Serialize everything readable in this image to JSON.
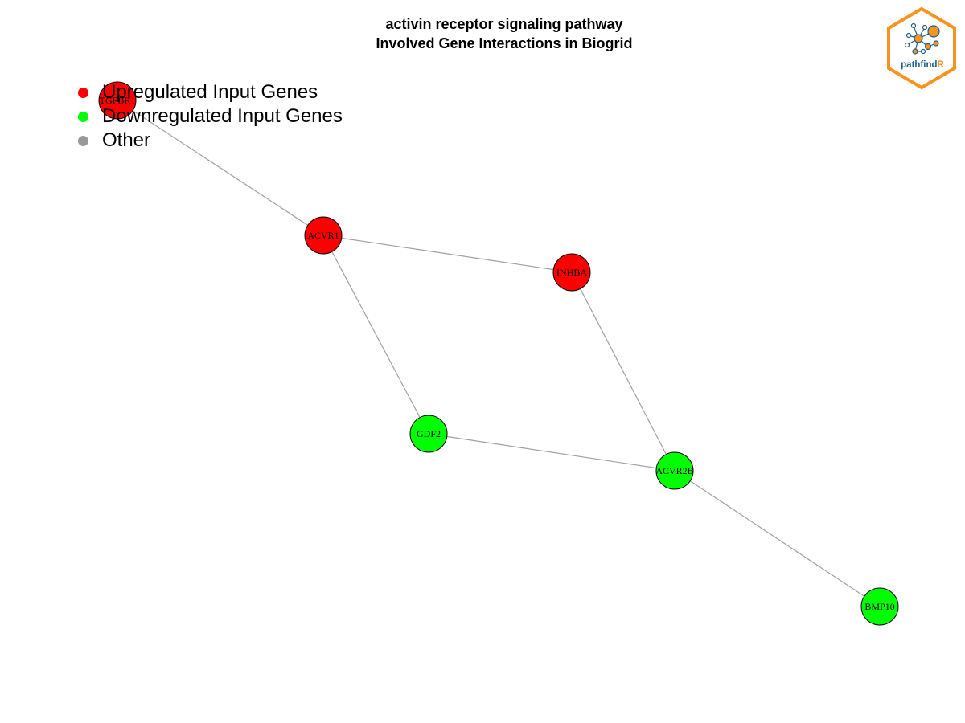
{
  "title": {
    "line1": "activin receptor signaling pathway",
    "line2": "Involved Gene Interactions in Biogrid"
  },
  "colors": {
    "upregulated": "#ff0000",
    "downregulated": "#00ff00",
    "other": "#999999",
    "edge": "#a0a0a0",
    "logo_orange": "#f7931e",
    "logo_blue": "#1f5f8b"
  },
  "legend": [
    {
      "label": "Upregulated Input Genes",
      "category": "upregulated"
    },
    {
      "label": "Downregulated Input Genes",
      "category": "downregulated"
    },
    {
      "label": "Other",
      "category": "other"
    }
  ],
  "network": {
    "nodes": [
      {
        "id": "TGFBR1",
        "label": "TGFBR1",
        "category": "upregulated"
      },
      {
        "id": "ACVR1",
        "label": "ACVR1",
        "category": "upregulated"
      },
      {
        "id": "INHBA",
        "label": "INHBA",
        "category": "upregulated"
      },
      {
        "id": "GDF2",
        "label": "GDF2",
        "category": "downregulated"
      },
      {
        "id": "ACVR2B",
        "label": "ACVR2B",
        "category": "downregulated"
      },
      {
        "id": "BMP10",
        "label": "BMP10",
        "category": "downregulated"
      }
    ],
    "edges": [
      [
        "TGFBR1",
        "ACVR1"
      ],
      [
        "ACVR1",
        "INHBA"
      ],
      [
        "ACVR1",
        "GDF2"
      ],
      [
        "INHBA",
        "ACVR2B"
      ],
      [
        "GDF2",
        "ACVR2B"
      ],
      [
        "ACVR2B",
        "BMP10"
      ]
    ]
  },
  "logo": {
    "text_main": "pathfind",
    "text_accent": "R",
    "icon": "network-hexagon-logo"
  }
}
